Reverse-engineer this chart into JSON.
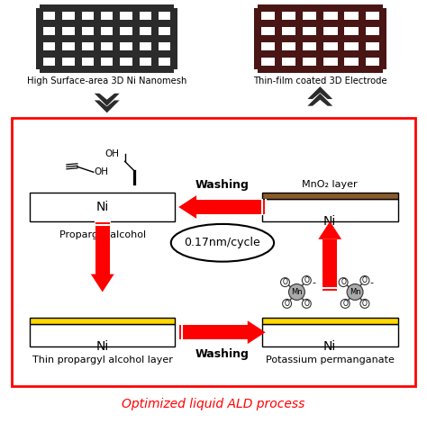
{
  "title": "Optimized liquid ALD process",
  "title_color": "#ff0000",
  "bg_color": "#ffffff",
  "box_color": "#ff0000",
  "left_label": "High Surface-area 3D Ni Nanomesh",
  "right_label": "Thin-film coated 3D Electrode",
  "ni_color": "#ffffff",
  "ni_border": "#000000",
  "mno2_color": "#8B5A2B",
  "yellow_color": "#FFD700",
  "arrow_color": "#ff0000",
  "dark_color": "#2b2b2b",
  "dark_red_color": "#4a1515",
  "label_propargyl": "Propargyl alcohol",
  "label_thin": "Thin propargyl alcohol layer",
  "label_mno2": "MnO₂ layer",
  "label_kperm": "Potassium permanganate",
  "label_cycle": "0.17nm/cycle",
  "label_washing1": "Washing",
  "label_washing2": "Washing"
}
